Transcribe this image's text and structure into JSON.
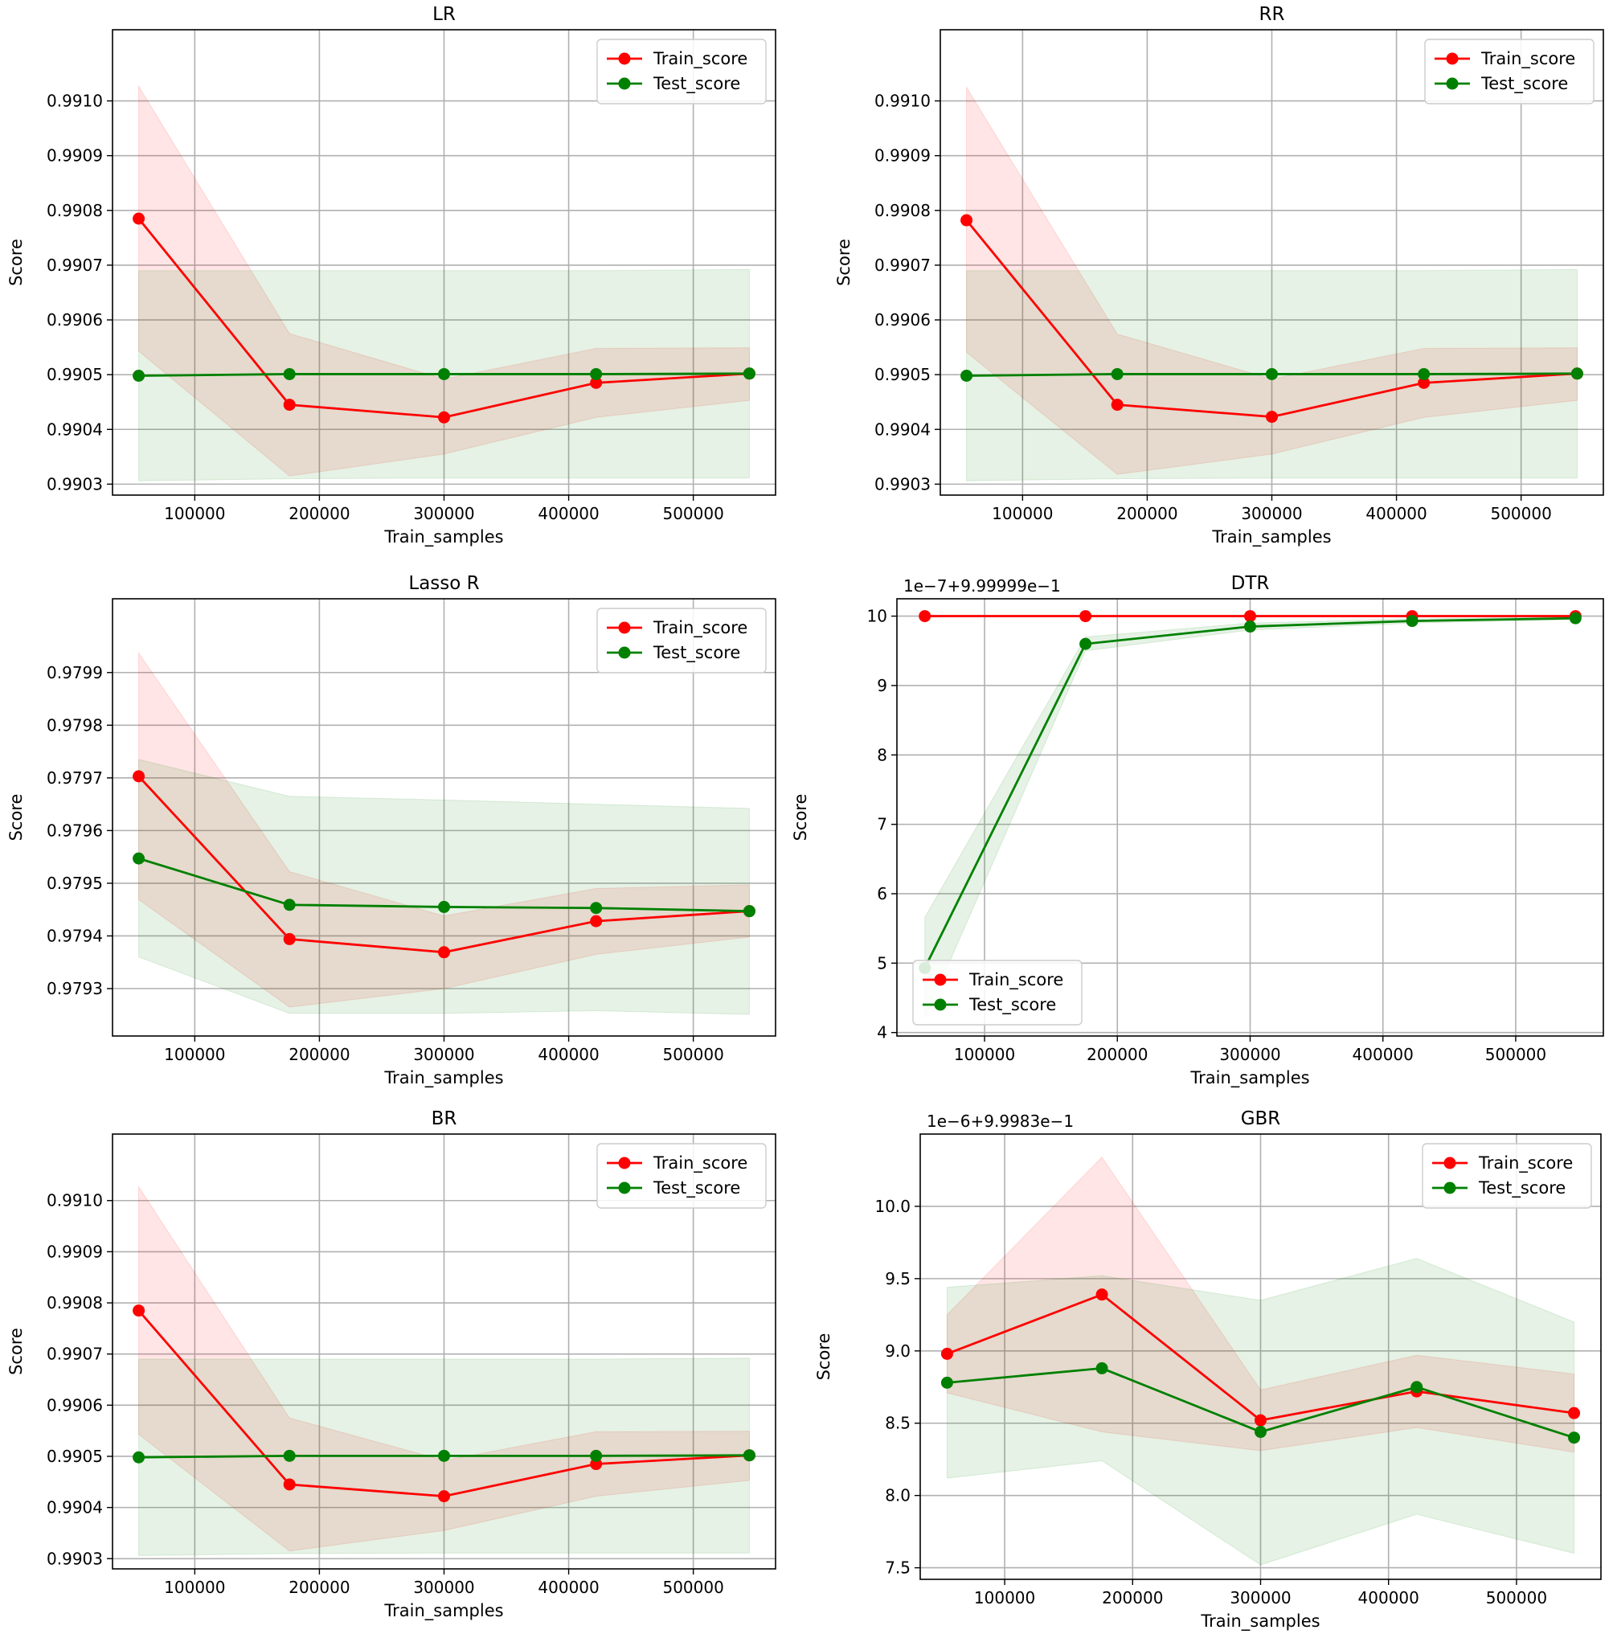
{
  "chart_data": [
    {
      "type": "line",
      "title": "LR",
      "xlabel": "Train_samples",
      "ylabel": "Score",
      "offset_text": "",
      "legend_loc": "upper-right",
      "xlim": [
        34000,
        566000
      ],
      "ylim": [
        0.99028,
        0.99113
      ],
      "xticks": [
        100000,
        200000,
        300000,
        400000,
        500000
      ],
      "xtick_labels": [
        "100000",
        "200000",
        "300000",
        "400000",
        "500000"
      ],
      "yticks": [
        0.9903,
        0.9904,
        0.9905,
        0.9906,
        0.9907,
        0.9908,
        0.9909,
        0.991
      ],
      "ytick_labels": [
        "0.9903",
        "0.9904",
        "0.9905",
        "0.9906",
        "0.9907",
        "0.9908",
        "0.9909",
        "0.9910"
      ],
      "x": [
        55000,
        176000,
        300000,
        422000,
        545000
      ],
      "series": [
        {
          "name": "Train_score",
          "color": "#ff0000",
          "fill": "#ff0000",
          "values": [
            0.990785,
            0.990445,
            0.990422,
            0.990485,
            0.990502
          ],
          "lower": [
            0.990543,
            0.990315,
            0.990355,
            0.990422,
            0.990453
          ],
          "upper": [
            0.991027,
            0.990575,
            0.990492,
            0.990548,
            0.990549
          ]
        },
        {
          "name": "Test_score",
          "color": "#008000",
          "fill": "#008000",
          "values": [
            0.990498,
            0.990501,
            0.990501,
            0.990501,
            0.990502
          ],
          "lower": [
            0.990306,
            0.99031,
            0.990311,
            0.990311,
            0.990311
          ],
          "upper": [
            0.99069,
            0.99069,
            0.99069,
            0.99069,
            0.990692
          ]
        }
      ]
    },
    {
      "type": "line",
      "title": "RR",
      "xlabel": "Train_samples",
      "ylabel": "Score",
      "offset_text": "",
      "legend_loc": "upper-right",
      "xlim": [
        34000,
        566000
      ],
      "ylim": [
        0.99028,
        0.99113
      ],
      "xticks": [
        100000,
        200000,
        300000,
        400000,
        500000
      ],
      "xtick_labels": [
        "100000",
        "200000",
        "300000",
        "400000",
        "500000"
      ],
      "yticks": [
        0.9903,
        0.9904,
        0.9905,
        0.9906,
        0.9907,
        0.9908,
        0.9909,
        0.991
      ],
      "ytick_labels": [
        "0.9903",
        "0.9904",
        "0.9905",
        "0.9906",
        "0.9907",
        "0.9908",
        "0.9909",
        "0.9910"
      ],
      "x": [
        55000,
        176000,
        300000,
        422000,
        545000
      ],
      "series": [
        {
          "name": "Train_score",
          "color": "#ff0000",
          "fill": "#ff0000",
          "values": [
            0.990782,
            0.990445,
            0.990423,
            0.990485,
            0.990502
          ],
          "lower": [
            0.990541,
            0.990318,
            0.990355,
            0.990422,
            0.990453
          ],
          "upper": [
            0.991025,
            0.990574,
            0.990492,
            0.990548,
            0.990549
          ]
        },
        {
          "name": "Test_score",
          "color": "#008000",
          "fill": "#008000",
          "values": [
            0.990498,
            0.990501,
            0.990501,
            0.990501,
            0.990502
          ],
          "lower": [
            0.990306,
            0.99031,
            0.990311,
            0.990311,
            0.990311
          ],
          "upper": [
            0.99069,
            0.99069,
            0.99069,
            0.99069,
            0.990692
          ]
        }
      ]
    },
    {
      "type": "line",
      "title": "Lasso R",
      "xlabel": "Train_samples",
      "ylabel": "Score",
      "offset_text": "",
      "legend_loc": "upper-right",
      "xlim": [
        34000,
        566000
      ],
      "ylim": [
        0.97921,
        0.98004
      ],
      "xticks": [
        100000,
        200000,
        300000,
        400000,
        500000
      ],
      "xtick_labels": [
        "100000",
        "200000",
        "300000",
        "400000",
        "500000"
      ],
      "yticks": [
        0.9793,
        0.9794,
        0.9795,
        0.9796,
        0.9797,
        0.9798,
        0.9799
      ],
      "ytick_labels": [
        "0.9793",
        "0.9794",
        "0.9795",
        "0.9796",
        "0.9797",
        "0.9798",
        "0.9799"
      ],
      "x": [
        55000,
        176000,
        300000,
        422000,
        545000
      ],
      "series": [
        {
          "name": "Train_score",
          "color": "#ff0000",
          "fill": "#ff0000",
          "values": [
            0.979703,
            0.979394,
            0.979369,
            0.979428,
            0.979447
          ],
          "lower": [
            0.979469,
            0.979265,
            0.9793,
            0.979365,
            0.979398
          ],
          "upper": [
            0.979937,
            0.979522,
            0.979438,
            0.97949,
            0.979497
          ]
        },
        {
          "name": "Test_score",
          "color": "#008000",
          "fill": "#008000",
          "values": [
            0.979547,
            0.979459,
            0.979455,
            0.979453,
            0.979447
          ],
          "lower": [
            0.97936,
            0.979253,
            0.979253,
            0.979258,
            0.979251
          ],
          "upper": [
            0.979735,
            0.979665,
            0.979658,
            0.97965,
            0.979642
          ]
        }
      ]
    },
    {
      "type": "line",
      "title": "DTR",
      "xlabel": "Train_samples",
      "ylabel": "Score",
      "offset_text": "1e−7+9.99999e−1",
      "legend_loc": "lower-left",
      "xlim": [
        34000,
        566000
      ],
      "ylim": [
        3.95,
        10.25
      ],
      "xticks": [
        100000,
        200000,
        300000,
        400000,
        500000
      ],
      "xtick_labels": [
        "100000",
        "200000",
        "300000",
        "400000",
        "500000"
      ],
      "yticks": [
        4,
        5,
        6,
        7,
        8,
        9,
        10
      ],
      "ytick_labels": [
        "4",
        "5",
        "6",
        "7",
        "8",
        "9",
        "10"
      ],
      "x": [
        55000,
        176000,
        300000,
        422000,
        545000
      ],
      "series": [
        {
          "name": "Train_score",
          "color": "#ff0000",
          "fill": "#ff0000",
          "values": [
            10,
            10,
            10,
            10,
            10
          ],
          "lower": [
            10,
            10,
            10,
            10,
            10
          ],
          "upper": [
            10,
            10,
            10,
            10,
            10
          ]
        },
        {
          "name": "Test_score",
          "color": "#008000",
          "fill": "#008000",
          "values": [
            4.93,
            9.6,
            9.85,
            9.93,
            9.97
          ],
          "lower": [
            4.2,
            9.5,
            9.8,
            9.9,
            9.95
          ],
          "upper": [
            5.66,
            9.7,
            9.9,
            9.96,
            9.99
          ]
        }
      ]
    },
    {
      "type": "line",
      "title": "BR",
      "xlabel": "Train_samples",
      "ylabel": "Score",
      "offset_text": "",
      "legend_loc": "upper-right",
      "xlim": [
        34000,
        566000
      ],
      "ylim": [
        0.99028,
        0.99113
      ],
      "xticks": [
        100000,
        200000,
        300000,
        400000,
        500000
      ],
      "xtick_labels": [
        "100000",
        "200000",
        "300000",
        "400000",
        "500000"
      ],
      "yticks": [
        0.9903,
        0.9904,
        0.9905,
        0.9906,
        0.9907,
        0.9908,
        0.9909,
        0.991
      ],
      "ytick_labels": [
        "0.9903",
        "0.9904",
        "0.9905",
        "0.9906",
        "0.9907",
        "0.9908",
        "0.9909",
        "0.9910"
      ],
      "x": [
        55000,
        176000,
        300000,
        422000,
        545000
      ],
      "series": [
        {
          "name": "Train_score",
          "color": "#ff0000",
          "fill": "#ff0000",
          "values": [
            0.990785,
            0.990445,
            0.990422,
            0.990485,
            0.990502
          ],
          "lower": [
            0.990543,
            0.990315,
            0.990355,
            0.990422,
            0.990453
          ],
          "upper": [
            0.991027,
            0.990575,
            0.990492,
            0.990548,
            0.990549
          ]
        },
        {
          "name": "Test_score",
          "color": "#008000",
          "fill": "#008000",
          "values": [
            0.990498,
            0.990501,
            0.990501,
            0.990501,
            0.990502
          ],
          "lower": [
            0.990306,
            0.99031,
            0.990311,
            0.990311,
            0.990311
          ],
          "upper": [
            0.99069,
            0.99069,
            0.99069,
            0.99069,
            0.990692
          ]
        }
      ]
    },
    {
      "type": "line",
      "title": "GBR",
      "xlabel": "Train_samples",
      "ylabel": "Score",
      "offset_text": "1e−6+9.9983e−1",
      "legend_loc": "upper-right",
      "xlim": [
        34000,
        566000
      ],
      "ylim": [
        7.42,
        10.5
      ],
      "xticks": [
        100000,
        200000,
        300000,
        400000,
        500000
      ],
      "xtick_labels": [
        "100000",
        "200000",
        "300000",
        "400000",
        "500000"
      ],
      "yticks": [
        7.5,
        8.0,
        8.5,
        9.0,
        9.5,
        10.0
      ],
      "ytick_labels": [
        "7.5",
        "8.0",
        "8.5",
        "9.0",
        "9.5",
        "10.0"
      ],
      "x": [
        55000,
        176000,
        300000,
        422000,
        545000
      ],
      "series": [
        {
          "name": "Train_score",
          "color": "#ff0000",
          "fill": "#ff0000",
          "values": [
            8.98,
            9.39,
            8.52,
            8.72,
            8.57
          ],
          "lower": [
            8.71,
            8.44,
            8.31,
            8.47,
            8.3
          ],
          "upper": [
            9.25,
            10.34,
            8.73,
            8.97,
            8.84
          ]
        },
        {
          "name": "Test_score",
          "color": "#008000",
          "fill": "#008000",
          "values": [
            8.78,
            8.88,
            8.44,
            8.75,
            8.4
          ],
          "lower": [
            8.12,
            8.24,
            7.52,
            7.87,
            7.6
          ],
          "upper": [
            9.44,
            9.52,
            9.35,
            9.64,
            9.2
          ]
        }
      ]
    }
  ]
}
